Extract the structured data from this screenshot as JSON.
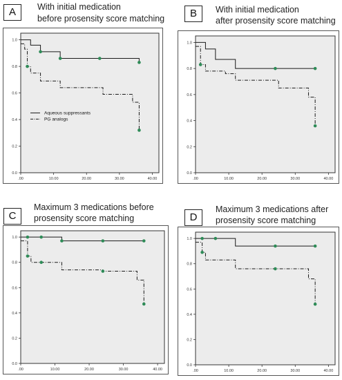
{
  "chart_data": [
    {
      "panel": "A",
      "type": "line",
      "title_lines": [
        "With initial medication",
        "before prosensity score matching"
      ],
      "x_ticks": [
        ".00",
        "10.00",
        "20.00",
        "30.00",
        "40.00"
      ],
      "y_ticks": [
        "0.0",
        "0.2",
        "0.4",
        "0.6",
        "0.8",
        "1.0"
      ],
      "xlim": [
        0,
        42
      ],
      "ylim": [
        0,
        1.05
      ],
      "legend": {
        "placement": "left-middle",
        "entries": [
          "Aqueous suppressants",
          "PG analogs"
        ]
      },
      "series": [
        {
          "name": "Aqueous suppressants",
          "style": "solid",
          "steps": [
            [
              0,
              1.0
            ],
            [
              3,
              0.96
            ],
            [
              6,
              0.91
            ],
            [
              12,
              0.86
            ],
            [
              36,
              0.83
            ]
          ],
          "censored": [
            [
              6,
              0.91
            ],
            [
              12,
              0.86
            ],
            [
              24,
              0.86
            ],
            [
              36,
              0.83
            ]
          ]
        },
        {
          "name": "PG analogs",
          "style": "dashdot",
          "steps": [
            [
              0,
              0.97
            ],
            [
              1.2,
              0.93
            ],
            [
              2,
              0.8
            ],
            [
              3,
              0.75
            ],
            [
              6,
              0.69
            ],
            [
              12,
              0.64
            ],
            [
              25,
              0.59
            ],
            [
              34,
              0.53
            ],
            [
              36,
              0.32
            ]
          ],
          "censored": [
            [
              2,
              0.8
            ],
            [
              36,
              0.32
            ]
          ]
        }
      ]
    },
    {
      "panel": "B",
      "type": "line",
      "title_lines": [
        "With initial medication",
        "after prosensity score matching"
      ],
      "x_ticks": [
        ".00",
        "10.00",
        "20.00",
        "30.00",
        "40.00"
      ],
      "y_ticks": [
        "0.0",
        "0.2",
        "0.4",
        "0.6",
        "0.8",
        "1.0"
      ],
      "xlim": [
        0,
        42
      ],
      "ylim": [
        0,
        1.05
      ],
      "series": [
        {
          "style": "solid",
          "steps": [
            [
              0,
              1.0
            ],
            [
              3,
              0.95
            ],
            [
              6,
              0.87
            ],
            [
              12,
              0.8
            ],
            [
              36,
              0.8
            ]
          ],
          "censored": [
            [
              24,
              0.8
            ],
            [
              36,
              0.8
            ]
          ]
        },
        {
          "style": "dashdot",
          "steps": [
            [
              0,
              0.97
            ],
            [
              1.5,
              0.83
            ],
            [
              3,
              0.78
            ],
            [
              9,
              0.76
            ],
            [
              12,
              0.71
            ],
            [
              25,
              0.65
            ],
            [
              34,
              0.58
            ],
            [
              36,
              0.36
            ]
          ],
          "censored": [
            [
              1.5,
              0.83
            ],
            [
              36,
              0.36
            ]
          ]
        }
      ]
    },
    {
      "panel": "C",
      "type": "line",
      "title_lines": [
        "Maximum 3 medications before",
        "prosensity score matching"
      ],
      "x_ticks": [
        ".00",
        "10.00",
        "20.00",
        "30.00",
        "40.00"
      ],
      "y_ticks": [
        "0.0",
        "0.2",
        "0.4",
        "0.6",
        "0.8",
        "1.0"
      ],
      "xlim": [
        0,
        42
      ],
      "ylim": [
        0,
        1.05
      ],
      "series": [
        {
          "style": "solid",
          "steps": [
            [
              0,
              1.0
            ],
            [
              12,
              0.97
            ],
            [
              36,
              0.97
            ]
          ],
          "censored": [
            [
              2,
              1.0
            ],
            [
              6,
              1.0
            ],
            [
              12,
              0.97
            ],
            [
              24,
              0.97
            ],
            [
              36,
              0.97
            ]
          ]
        },
        {
          "style": "dashdot",
          "steps": [
            [
              0,
              0.97
            ],
            [
              2,
              0.85
            ],
            [
              3,
              0.8
            ],
            [
              12,
              0.74
            ],
            [
              24,
              0.73
            ],
            [
              34,
              0.66
            ],
            [
              36,
              0.47
            ]
          ],
          "censored": [
            [
              2,
              0.85
            ],
            [
              6,
              0.8
            ],
            [
              24,
              0.73
            ],
            [
              36,
              0.47
            ]
          ]
        }
      ]
    },
    {
      "panel": "D",
      "type": "line",
      "title_lines": [
        "Maximum 3 medications after",
        "prosensity score matching"
      ],
      "x_ticks": [
        ".00",
        "10.00",
        "20.00",
        "30.00",
        "40.00"
      ],
      "y_ticks": [
        "0.0",
        "0.2",
        "0.4",
        "0.6",
        "0.8",
        "1.0"
      ],
      "xlim": [
        0,
        42
      ],
      "ylim": [
        0,
        1.05
      ],
      "series": [
        {
          "style": "solid",
          "steps": [
            [
              0,
              1.0
            ],
            [
              12,
              0.94
            ],
            [
              36,
              0.94
            ]
          ],
          "censored": [
            [
              2,
              1.0
            ],
            [
              6,
              1.0
            ],
            [
              24,
              0.94
            ],
            [
              36,
              0.94
            ]
          ]
        },
        {
          "style": "dashdot",
          "steps": [
            [
              0,
              0.97
            ],
            [
              2,
              0.89
            ],
            [
              3,
              0.83
            ],
            [
              12,
              0.76
            ],
            [
              25,
              0.76
            ],
            [
              34,
              0.68
            ],
            [
              36,
              0.48
            ]
          ],
          "censored": [
            [
              2,
              0.89
            ],
            [
              24,
              0.76
            ],
            [
              36,
              0.48
            ]
          ]
        }
      ]
    }
  ],
  "colors": {
    "line": "#1a1a1a",
    "censor_marker": "#2e8b57",
    "plot_background": "#ececec"
  }
}
